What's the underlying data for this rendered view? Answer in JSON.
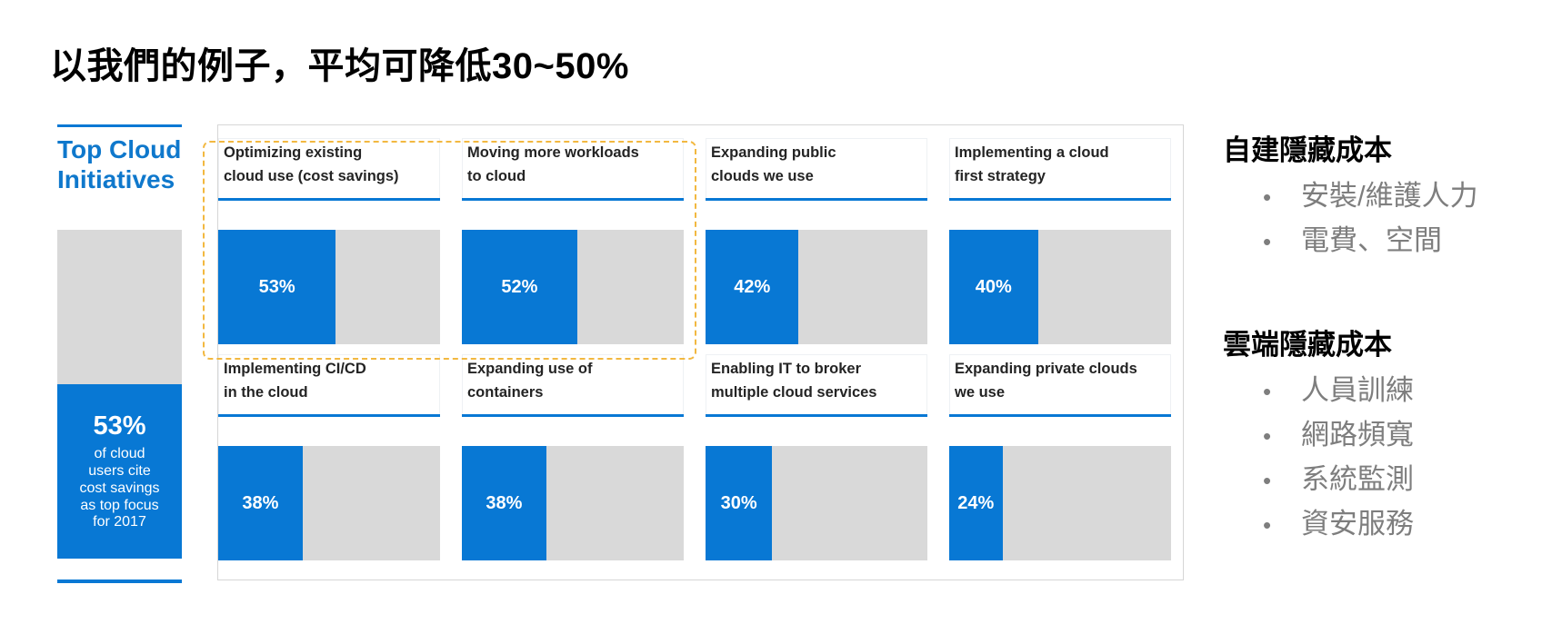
{
  "theme": {
    "accent_blue": "#0878D4",
    "heading_blue": "#0F78CC",
    "track_gray": "#D9D9D9",
    "highlight_dash_gold": "#F2B840",
    "bullet_gray": "#7E7E7E"
  },
  "slide": {
    "title": "以我們的例子，平均可降低30~50%"
  },
  "sidebar": {
    "heading": "Top Cloud\nInitiatives",
    "stat_value": "53%",
    "stat_pct": 53,
    "stat_caption": "of cloud\nusers cite\ncost savings\nas top focus\nfor 2017"
  },
  "tiles": [
    {
      "label": "Optimizing existing\ncloud use (cost savings)",
      "value": 53,
      "pct": "53%"
    },
    {
      "label": "Moving more workloads\nto cloud",
      "value": 52,
      "pct": "52%"
    },
    {
      "label": "Expanding public\nclouds we use",
      "value": 42,
      "pct": "42%"
    },
    {
      "label": "Implementing a cloud\nfirst strategy",
      "value": 40,
      "pct": "40%"
    },
    {
      "label": "Implementing CI/CD\nin the cloud",
      "value": 38,
      "pct": "38%"
    },
    {
      "label": "Expanding use of\ncontainers",
      "value": 38,
      "pct": "38%"
    },
    {
      "label": "Enabling IT to broker\nmultiple cloud services",
      "value": 30,
      "pct": "30%"
    },
    {
      "label": "Expanding private clouds\nwe use",
      "value": 24,
      "pct": "24%"
    }
  ],
  "chart_data": {
    "type": "bar",
    "orientation": "horizontal",
    "title": "Top Cloud Initiatives",
    "categories": [
      "Optimizing existing cloud use (cost savings)",
      "Moving more workloads to cloud",
      "Expanding public clouds we use",
      "Implementing a cloud first strategy",
      "Implementing CI/CD in the cloud",
      "Expanding use of containers",
      "Enabling IT to broker multiple cloud services",
      "Expanding private clouds we use"
    ],
    "values": [
      53,
      52,
      42,
      40,
      38,
      38,
      30,
      24
    ],
    "data_labels": [
      "53%",
      "52%",
      "42%",
      "40%",
      "38%",
      "38%",
      "30%",
      "24%"
    ],
    "unit": "%",
    "xlim": [
      0,
      100
    ],
    "grid": false,
    "legend": false,
    "callout": "53% of cloud users cite cost savings as top focus for 2017",
    "highlighted_categories": [
      "Optimizing existing cloud use (cost savings)",
      "Moving more workloads to cloud"
    ],
    "bar_color": "#0878D4",
    "track_color": "#D9D9D9"
  },
  "right_panel": {
    "sections": [
      {
        "heading": "自建隱藏成本",
        "items": [
          "安裝/維護人力",
          "電費、空間"
        ]
      },
      {
        "heading": "雲端隱藏成本",
        "items": [
          "人員訓練",
          "網路頻寬",
          "系統監測",
          "資安服務"
        ]
      }
    ]
  }
}
